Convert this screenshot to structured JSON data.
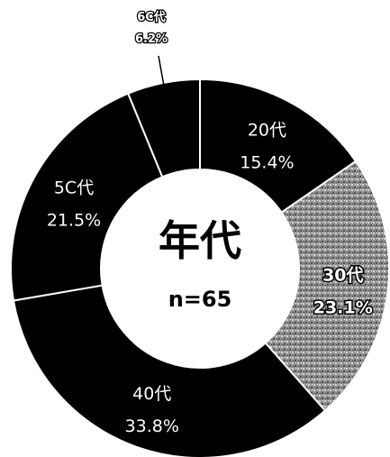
{
  "chart_data": {
    "type": "pie",
    "title": "年代",
    "subtitle": "n=65",
    "categories": [
      "20代",
      "30代",
      "40代",
      "50代",
      "60代"
    ],
    "values": [
      15.4,
      23.1,
      33.8,
      21.5,
      6.2
    ],
    "value_labels": [
      "15.4%",
      "23.1%",
      "33.8%",
      "21.5%",
      "6.2%"
    ],
    "category_labels_as_printed": [
      "20代",
      "30代",
      "40代",
      "5C代",
      "6C代"
    ],
    "colors": [
      "#000000",
      "#8a8a8a",
      "#000000",
      "#000000",
      "#000000"
    ],
    "slice_style": [
      "solid",
      "stippled",
      "solid",
      "solid",
      "solid"
    ],
    "separator_color": "#ffffff",
    "background": "#ffffff",
    "donut": true,
    "legend": "none"
  }
}
